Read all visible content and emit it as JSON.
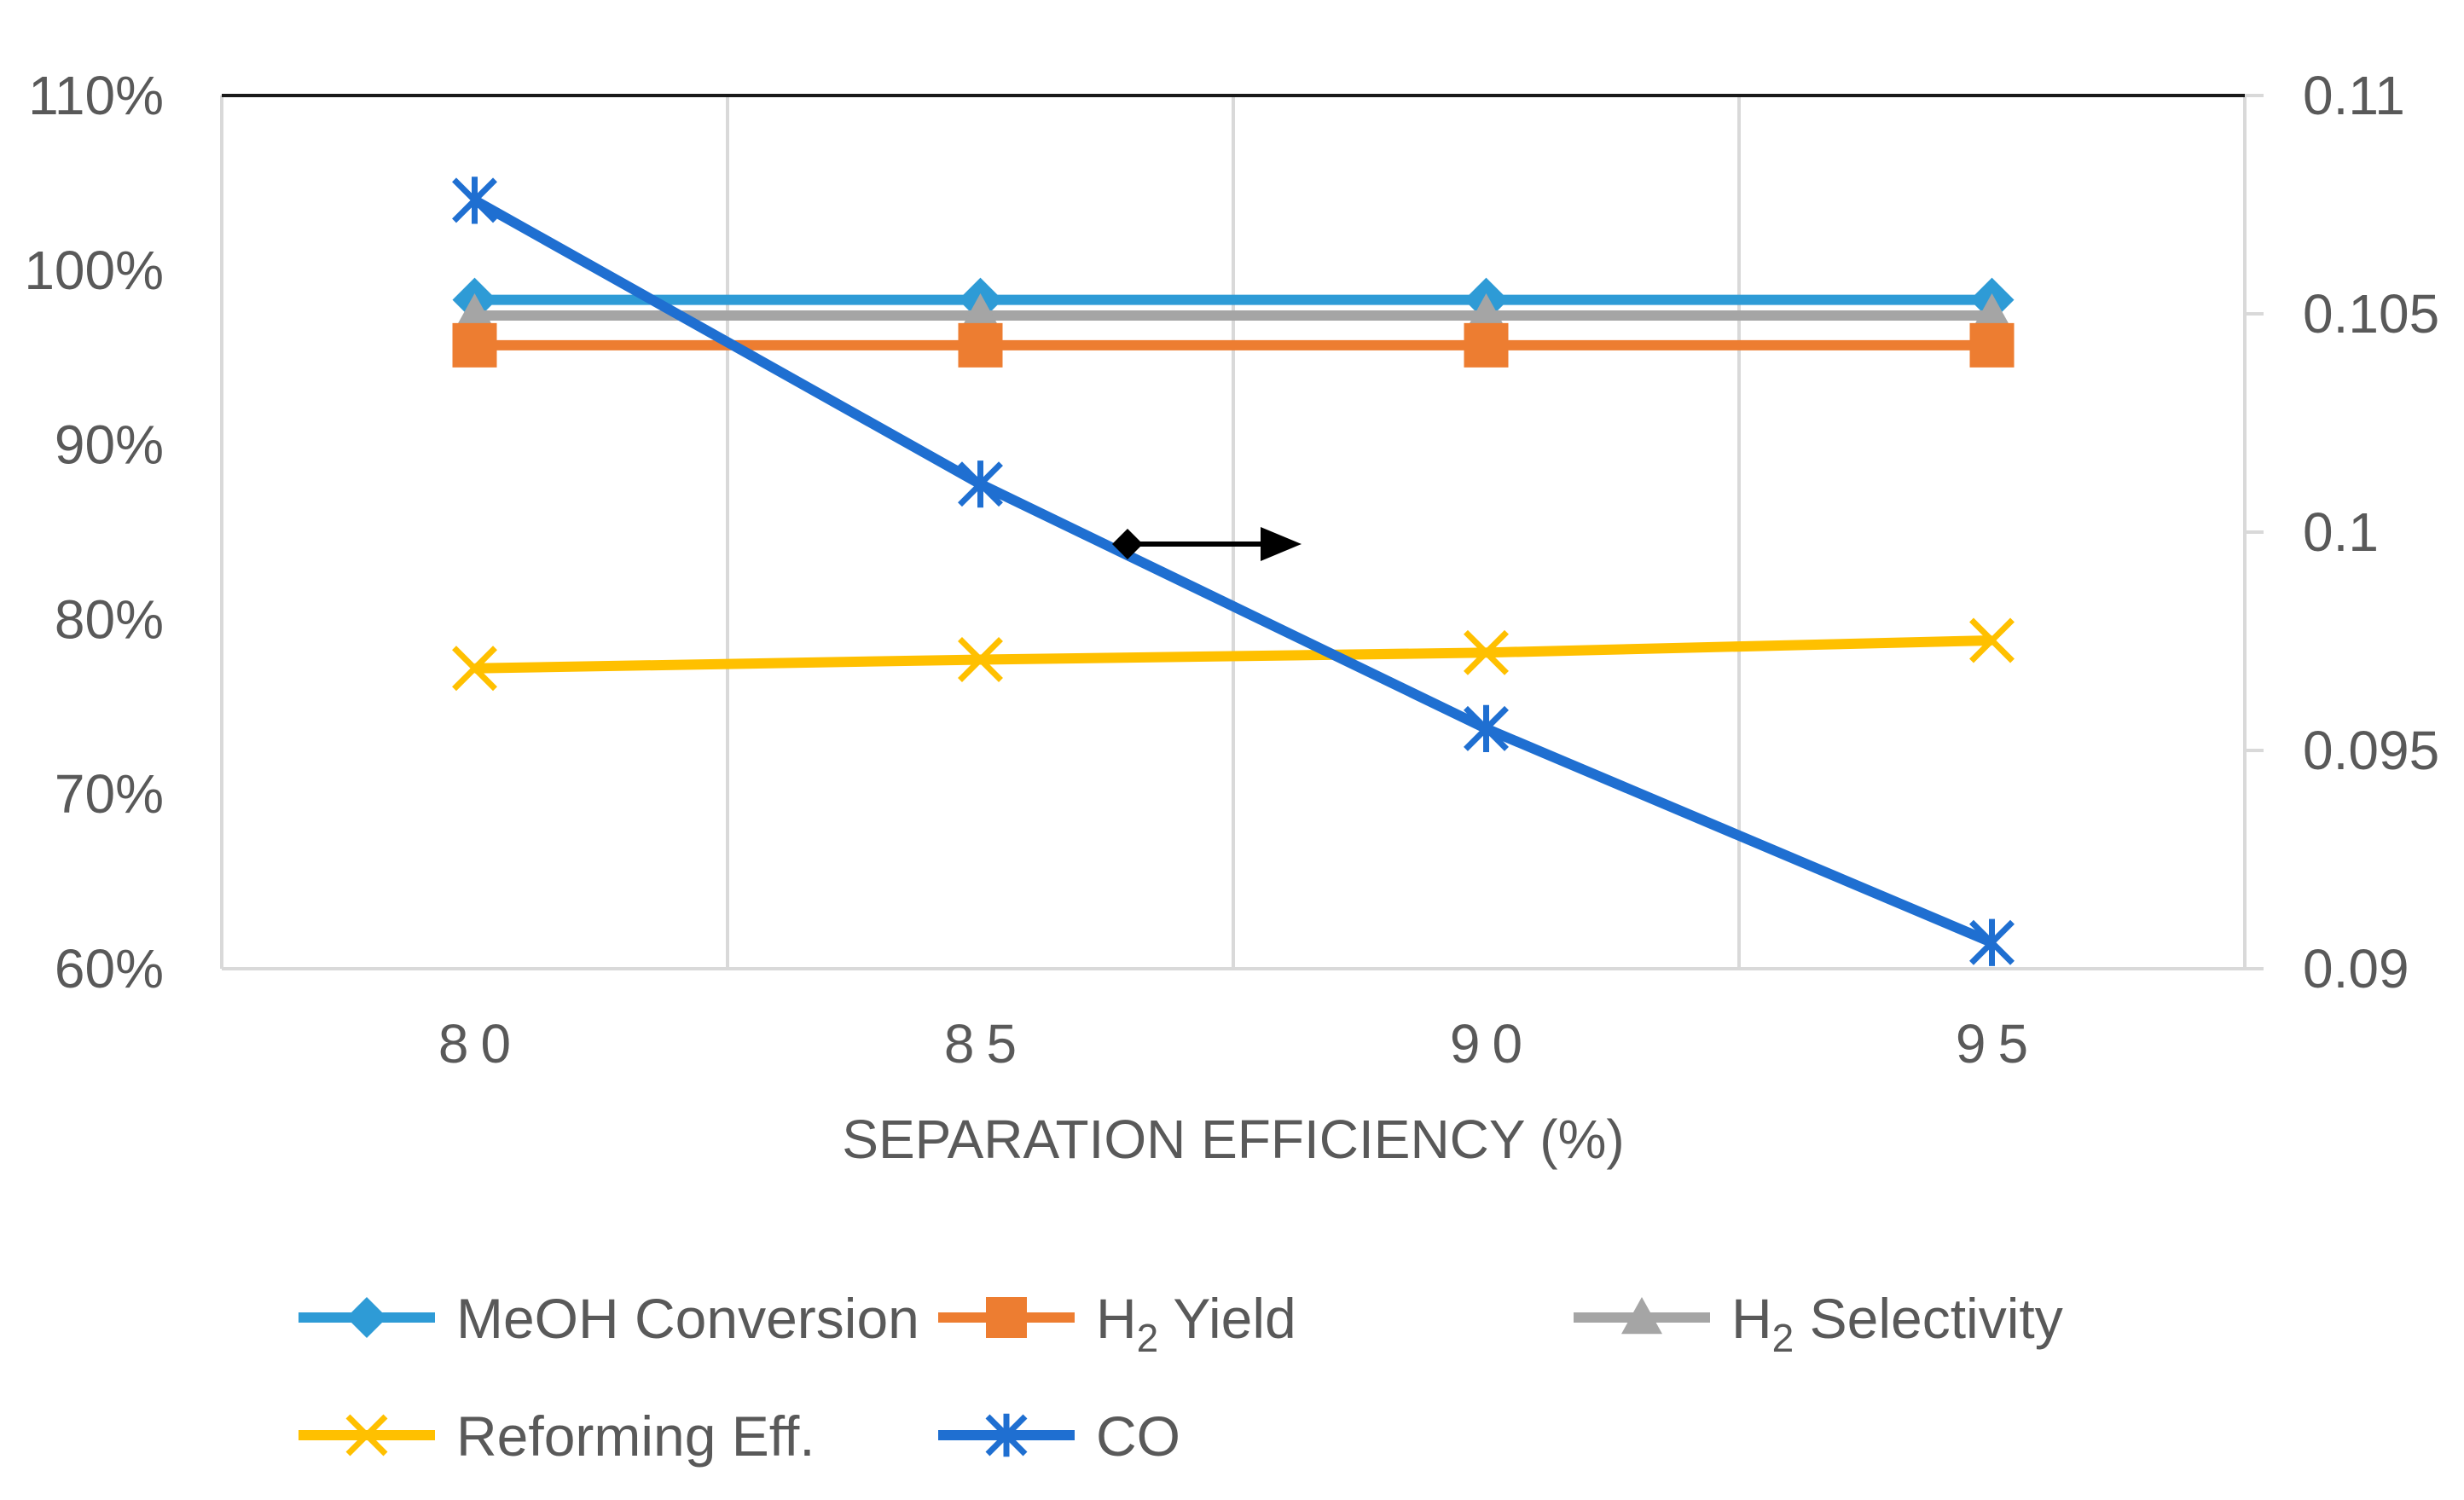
{
  "chart_data": {
    "type": "line",
    "title": "",
    "xlabel": "SEPARATION EFFICIENCY (%)",
    "ylabel_left": "",
    "ylabel_right": "",
    "categories": [
      "80",
      "85",
      "90",
      "95"
    ],
    "x": [
      80,
      85,
      90,
      95
    ],
    "xlim": [
      77.5,
      97.5
    ],
    "ylim_left": [
      0.6,
      1.1
    ],
    "ylim_right": [
      0.09,
      0.11
    ],
    "left_ticks": [
      "60%",
      "70%",
      "80%",
      "90%",
      "100%",
      "110%"
    ],
    "right_ticks": [
      "0.09",
      "0.095",
      "0.1",
      "0.105",
      "0.11"
    ],
    "right_axis_indicator": "arrow pointing right toward CO on secondary axis",
    "series": [
      {
        "name": "MeOH Conversion",
        "name_main": "MeOH Conversion",
        "name_sub": "",
        "name_rest": "",
        "axis": "left",
        "marker": "diamond",
        "color": "#2E9BD6",
        "values": [
          0.983,
          0.983,
          0.983,
          0.983
        ]
      },
      {
        "name": "H2 Yield",
        "name_main": "H",
        "name_sub": "2",
        "name_rest": " Yield",
        "axis": "left",
        "marker": "square",
        "color": "#ED7D31",
        "values": [
          0.957,
          0.957,
          0.957,
          0.957
        ]
      },
      {
        "name": "H2 Selectivity",
        "name_main": "H",
        "name_sub": "2",
        "name_rest": " Selectivity",
        "axis": "left",
        "marker": "triangle",
        "color": "#A5A5A5",
        "values": [
          0.974,
          0.974,
          0.974,
          0.974
        ]
      },
      {
        "name": "Reforming Eff.",
        "name_main": "Reforming Eff.",
        "name_sub": "",
        "name_rest": "",
        "axis": "left",
        "marker": "x",
        "color": "#FFC000",
        "values": [
          0.772,
          0.777,
          0.781,
          0.788
        ]
      },
      {
        "name": "CO",
        "name_main": "CO",
        "name_sub": "",
        "name_rest": "",
        "axis": "right",
        "marker": "star",
        "color": "#1F6FD1",
        "values": [
          0.1076,
          0.1011,
          0.0955,
          0.0906
        ]
      }
    ]
  }
}
